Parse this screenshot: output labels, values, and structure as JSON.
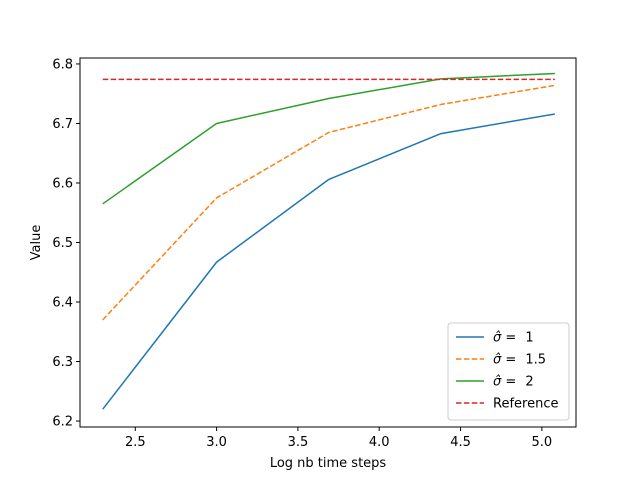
{
  "chart_data": {
    "type": "line",
    "title": "",
    "xlabel": "Log nb time  steps",
    "ylabel": "Value",
    "xlim": [
      2.16,
      5.21
    ],
    "ylim": [
      6.19,
      6.81
    ],
    "xticks": [
      2.5,
      3.0,
      3.5,
      4.0,
      4.5,
      5.0
    ],
    "xtick_labels": [
      "2.5",
      "3.0",
      "3.5",
      "4.0",
      "4.5",
      "5.0"
    ],
    "yticks": [
      6.2,
      6.3,
      6.4,
      6.5,
      6.6,
      6.7,
      6.8
    ],
    "ytick_labels": [
      "6.2",
      "6.3",
      "6.4",
      "6.5",
      "6.6",
      "6.7",
      "6.8"
    ],
    "grid": false,
    "legend_position": "lower-right",
    "x": [
      2.3,
      3.0,
      3.69,
      4.38,
      5.08
    ],
    "series": [
      {
        "name": "σ̂ =  1",
        "symbol": "σ̂ = ",
        "value_label": "1",
        "color": "#1f77b4",
        "dash": "solid",
        "values": [
          6.22,
          6.467,
          6.606,
          6.683,
          6.716
        ]
      },
      {
        "name": "σ̂ =  1.5",
        "symbol": "σ̂ = ",
        "value_label": "1.5",
        "color": "#ff7f0e",
        "dash": "dashed",
        "values": [
          6.37,
          6.575,
          6.685,
          6.732,
          6.764
        ]
      },
      {
        "name": "σ̂ =  2",
        "symbol": "σ̂ = ",
        "value_label": "2",
        "color": "#2ca02c",
        "dash": "solid",
        "values": [
          6.565,
          6.7,
          6.742,
          6.775,
          6.784
        ]
      },
      {
        "name": "Reference",
        "symbol": "",
        "value_label": "Reference",
        "color": "#d62728",
        "dash": "dashed",
        "values": [
          6.774,
          6.774,
          6.774,
          6.774,
          6.774
        ]
      }
    ]
  }
}
